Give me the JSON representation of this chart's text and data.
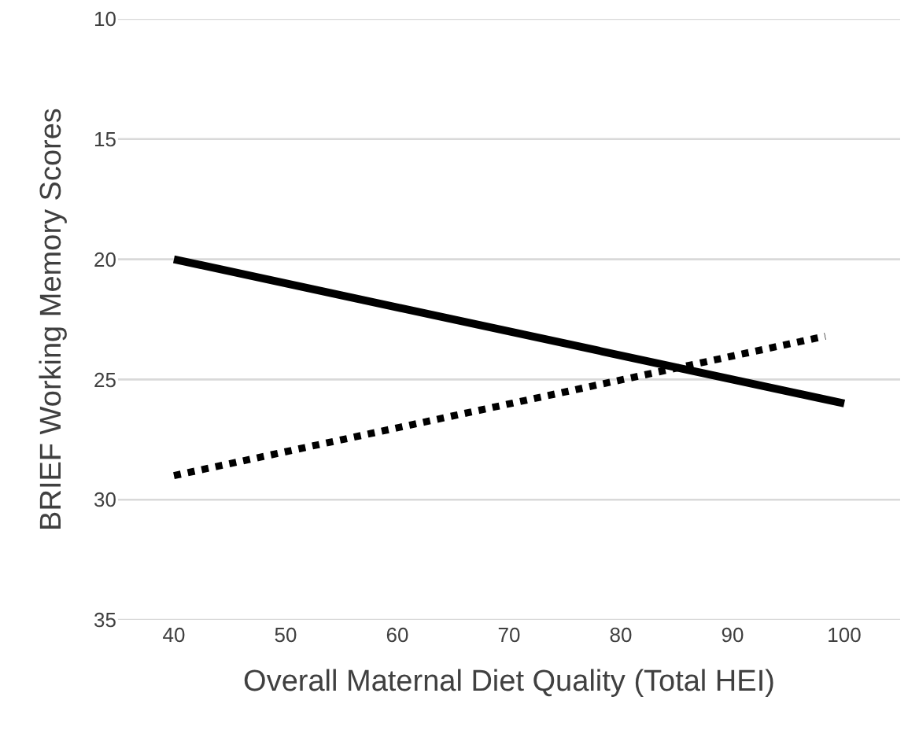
{
  "chart_data": {
    "type": "line",
    "xlabel": "Overall Maternal Diet Quality (Total HEI)",
    "ylabel": "BRIEF Working Memory Scores",
    "series": [
      {
        "color": "#000000",
        "x": [
          40,
          100
        ],
        "values": [
          20,
          26
        ],
        "line_style": "solid"
      },
      {
        "color": "#000000",
        "x": [
          40,
          98.3
        ],
        "values": [
          29,
          23.2
        ],
        "line_style": "dotted"
      }
    ],
    "xlim": [
      35,
      105
    ],
    "xticks": [
      40,
      50,
      60,
      70,
      80,
      90,
      100
    ],
    "ylim": [
      35,
      10
    ],
    "yticks": [
      10,
      15,
      20,
      25,
      30,
      35
    ],
    "grid": "y",
    "marker": "none"
  }
}
